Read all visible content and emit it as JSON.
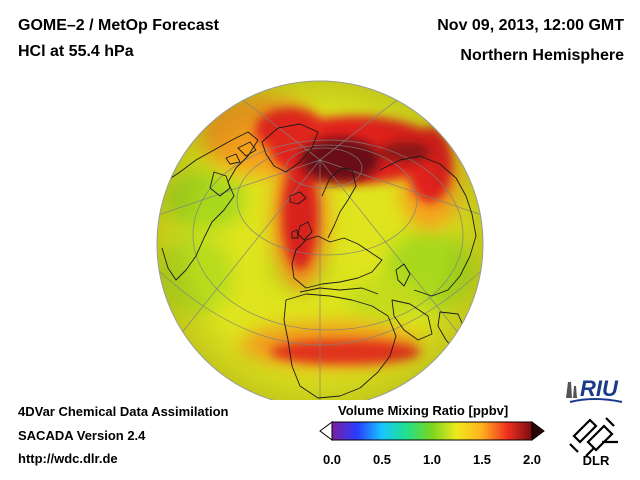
{
  "header": {
    "title_line1": "GOME–2 / MetOp Forecast",
    "title_line2": "HCl at 55.4 hPa",
    "datetime": "Nov 09, 2013, 12:00 GMT",
    "region": "Northern Hemisphere"
  },
  "footer": {
    "line1": "4DVar Chemical Data Assimilation",
    "line2": "SACADA Version 2.4",
    "line3": "http://wdc.dlr.de"
  },
  "colorbar": {
    "title": "Volume Mixing Ratio [ppbv]",
    "ticks": [
      "0.0",
      "0.5",
      "1.0",
      "1.5",
      "2.0"
    ],
    "min": 0.0,
    "max": 2.0,
    "colors": [
      "#7a1fa0",
      "#2a3cff",
      "#17c6ff",
      "#22e08a",
      "#7ad61e",
      "#f0e81e",
      "#ffb01e",
      "#f0301e",
      "#7a0c10"
    ]
  },
  "logos": {
    "riu": "RIU",
    "dlr": "DLR"
  },
  "map_colors": {
    "background_field": "#e8e81e",
    "high_field": "#e0141e",
    "core_field": "#5a0c12",
    "coast": "#1a1a1a",
    "grid": "#7a7a7a"
  }
}
